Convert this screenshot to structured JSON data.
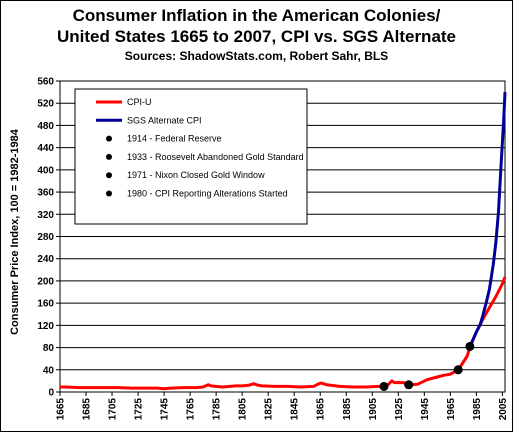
{
  "chart_data": {
    "type": "line",
    "title": "Consumer Inflation in the American Colonies/",
    "title_line2": "United States 1665 to 2007, CPI vs. SGS Alternate",
    "subtitle": "Sources: ShadowStats.com, Robert Sahr, BLS",
    "xlabel": "",
    "ylabel": "Consumer Price Index, 100 = 1982-1984",
    "xlim": [
      1665,
      2007
    ],
    "ylim": [
      0,
      560
    ],
    "x_ticks": [
      "1665",
      "1685",
      "1705",
      "1725",
      "1745",
      "1765",
      "1785",
      "1805",
      "1825",
      "1845",
      "1865",
      "1885",
      "1905",
      "1925",
      "1945",
      "1965",
      "1985",
      "2005"
    ],
    "y_ticks": [
      "0",
      "40",
      "80",
      "120",
      "160",
      "200",
      "240",
      "280",
      "320",
      "360",
      "400",
      "440",
      "480",
      "520",
      "560"
    ],
    "grid": "horizontal",
    "legend_position": "top-left",
    "series": [
      {
        "name": "CPI-U",
        "color": "#ff0000",
        "points": [
          [
            1665,
            9
          ],
          [
            1670,
            9
          ],
          [
            1680,
            8
          ],
          [
            1690,
            8
          ],
          [
            1700,
            8
          ],
          [
            1710,
            8
          ],
          [
            1720,
            7
          ],
          [
            1730,
            7
          ],
          [
            1740,
            7
          ],
          [
            1745,
            6
          ],
          [
            1750,
            7
          ],
          [
            1760,
            8
          ],
          [
            1770,
            8
          ],
          [
            1775,
            9
          ],
          [
            1779,
            13
          ],
          [
            1781,
            11
          ],
          [
            1785,
            10
          ],
          [
            1790,
            9
          ],
          [
            1800,
            11
          ],
          [
            1805,
            11
          ],
          [
            1810,
            12
          ],
          [
            1814,
            15
          ],
          [
            1816,
            13
          ],
          [
            1820,
            11
          ],
          [
            1830,
            10
          ],
          [
            1840,
            10
          ],
          [
            1850,
            9
          ],
          [
            1860,
            10
          ],
          [
            1864,
            15
          ],
          [
            1866,
            16
          ],
          [
            1870,
            13
          ],
          [
            1880,
            10
          ],
          [
            1890,
            9
          ],
          [
            1900,
            9
          ],
          [
            1910,
            10
          ],
          [
            1914,
            10
          ],
          [
            1917,
            13
          ],
          [
            1920,
            20
          ],
          [
            1922,
            17
          ],
          [
            1929,
            17
          ],
          [
            1933,
            13
          ],
          [
            1940,
            14
          ],
          [
            1947,
            22
          ],
          [
            1950,
            24
          ],
          [
            1955,
            27
          ],
          [
            1960,
            30
          ],
          [
            1965,
            32
          ],
          [
            1970,
            39
          ],
          [
            1971,
            40
          ],
          [
            1975,
            54
          ],
          [
            1978,
            65
          ],
          [
            1980,
            82
          ],
          [
            1985,
            108
          ],
          [
            1990,
            131
          ],
          [
            1995,
            152
          ],
          [
            2000,
            172
          ],
          [
            2005,
            195
          ],
          [
            2007,
            207
          ]
        ]
      },
      {
        "name": "SGS Alternate CPI",
        "color": "#000099",
        "points": [
          [
            1980,
            82
          ],
          [
            1982,
            92
          ],
          [
            1985,
            108
          ],
          [
            1988,
            122
          ],
          [
            1990,
            138
          ],
          [
            1993,
            165
          ],
          [
            1995,
            185
          ],
          [
            1998,
            230
          ],
          [
            2000,
            270
          ],
          [
            2002,
            325
          ],
          [
            2004,
            410
          ],
          [
            2006,
            490
          ],
          [
            2007,
            540
          ]
        ]
      }
    ],
    "markers": [
      {
        "name": "1914 - Federal Reserve",
        "x": 1914,
        "y": 10
      },
      {
        "name": "1933 - Roosevelt Abandoned Gold Standard",
        "x": 1933,
        "y": 13
      },
      {
        "name": "1971 - Nixon Closed Gold Window",
        "x": 1971,
        "y": 40
      },
      {
        "name": "1980 - CPI Reporting Alterations Started",
        "x": 1980,
        "y": 82
      }
    ]
  }
}
